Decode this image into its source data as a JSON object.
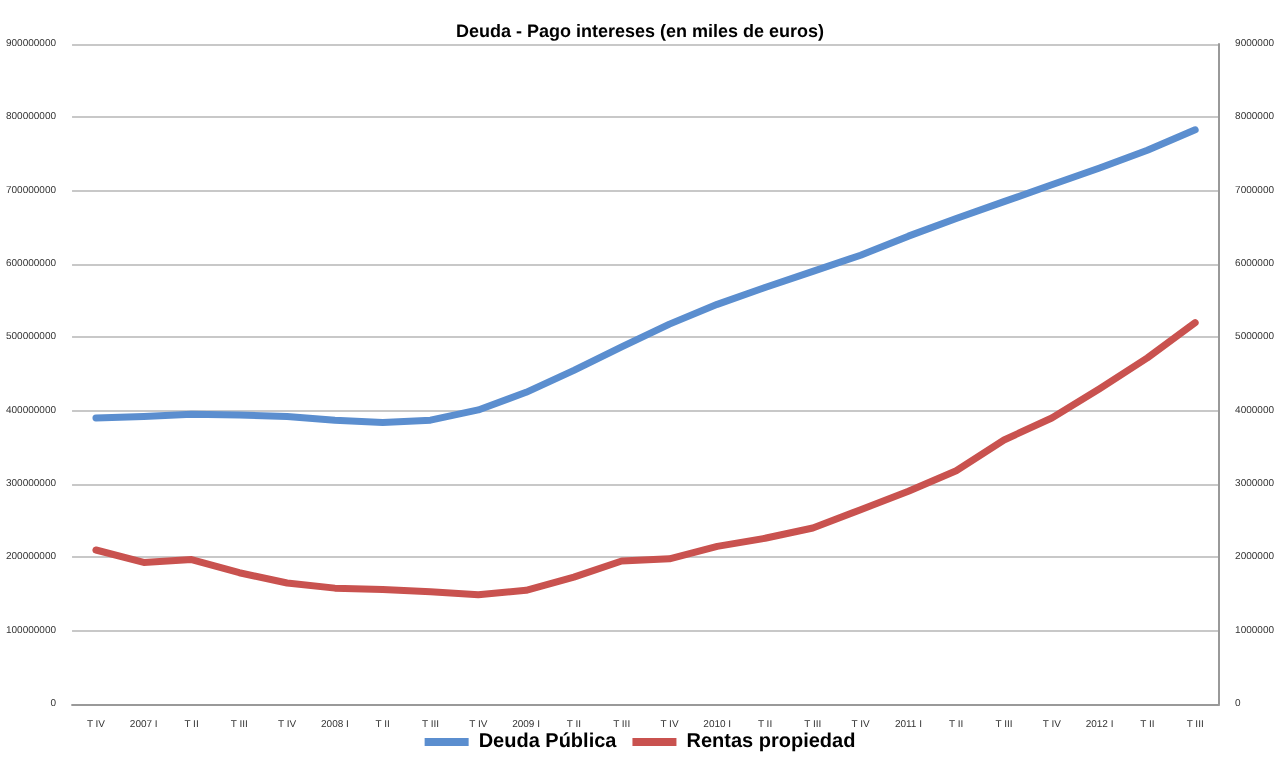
{
  "chart_data": {
    "type": "line",
    "title": "Deuda - Pago intereses (en miles de euros)",
    "categories": [
      "T IV",
      "2007 I",
      "T II",
      "T III",
      "T IV",
      "2008 I",
      "T II",
      "T III",
      "T IV",
      "2009 I",
      "T II",
      "T III",
      "T IV",
      "2010 I",
      "T II",
      "T III",
      "T IV",
      "2011 I",
      "T II",
      "T III",
      "T IV",
      "2012 I",
      "T II",
      "T III"
    ],
    "series": [
      {
        "name": "Deuda Pública",
        "color": "#5b8ecf",
        "values": [
          390000000,
          392000000,
          395000000,
          394000000,
          392000000,
          387000000,
          384000000,
          387000000,
          401000000,
          425000000,
          455000000,
          487000000,
          518000000,
          545000000,
          568000000,
          590000000,
          612000000,
          638000000,
          662000000,
          685000000,
          708000000,
          731000000,
          755000000,
          783000000
        ]
      },
      {
        "name": "Rentas propiedad",
        "color": "#c9524f",
        "axis": "y2",
        "values": [
          2100000,
          1930000,
          1970000,
          1790000,
          1650000,
          1580000,
          1560000,
          1530000,
          1490000,
          1550000,
          1730000,
          1950000,
          1980000,
          2150000,
          2260000,
          2400000,
          2650000,
          2900000,
          3180000,
          3600000,
          3900000,
          4300000,
          4720000,
          5200000
        ]
      }
    ],
    "ylim": [
      0,
      900000000
    ],
    "yticks": [
      0,
      100000000,
      200000000,
      300000000,
      400000000,
      500000000,
      600000000,
      700000000,
      800000000,
      900000000
    ],
    "y2lim": [
      0,
      9000000
    ],
    "y2ticks": [
      0,
      1000000,
      2000000,
      3000000,
      4000000,
      5000000,
      6000000,
      7000000,
      8000000,
      9000000
    ],
    "grid": "y",
    "legend": "bottom",
    "marker": "none",
    "line_style": "solid"
  }
}
